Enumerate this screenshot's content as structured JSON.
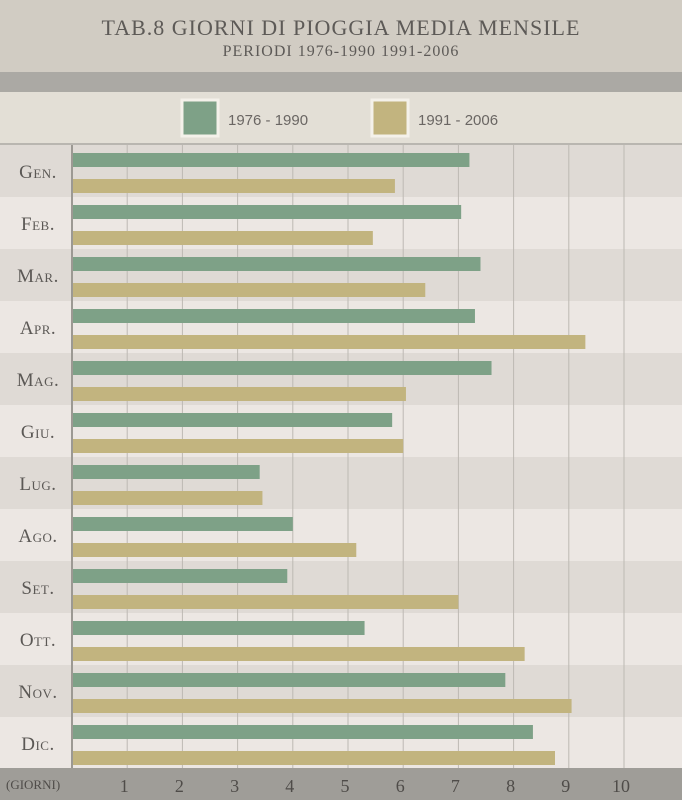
{
  "chart_data": {
    "type": "bar",
    "orientation": "horizontal",
    "title": "TAB.8  GIORNI DI PIOGGIA MEDIA MENSILE",
    "subtitle": "PERIODI 1976-1990  1991-2006",
    "xlabel": "(GIORNI)",
    "xlim": [
      0,
      10.5
    ],
    "xticks": [
      1,
      2,
      3,
      4,
      5,
      6,
      7,
      8,
      9,
      10
    ],
    "grid": true,
    "legend_position": "top-center",
    "categories": [
      "Gen.",
      "Feb.",
      "Mar.",
      "Apr.",
      "Mag.",
      "Giu.",
      "Lug.",
      "Ago.",
      "Set.",
      "Ott.",
      "Nov.",
      "Dic."
    ],
    "series": [
      {
        "name": "1976 - 1990",
        "color": "#7ea187",
        "values": [
          7.2,
          7.05,
          7.4,
          7.3,
          7.6,
          5.8,
          3.4,
          4.0,
          3.9,
          5.3,
          7.85,
          8.35
        ]
      },
      {
        "name": "1991 - 2006",
        "color": "#c2b47f",
        "values": [
          5.85,
          5.45,
          6.4,
          9.3,
          6.05,
          6.0,
          3.45,
          5.15,
          7.0,
          8.2,
          9.05,
          8.75
        ]
      }
    ]
  },
  "colors": {
    "title_band": "#d1ccc3",
    "band_dark": "#aba9a4",
    "legend_band": "#e3dfd6",
    "row_dark": "#dfdad5",
    "row_light": "#ece7e3",
    "axis_band": "#9f9d98"
  }
}
